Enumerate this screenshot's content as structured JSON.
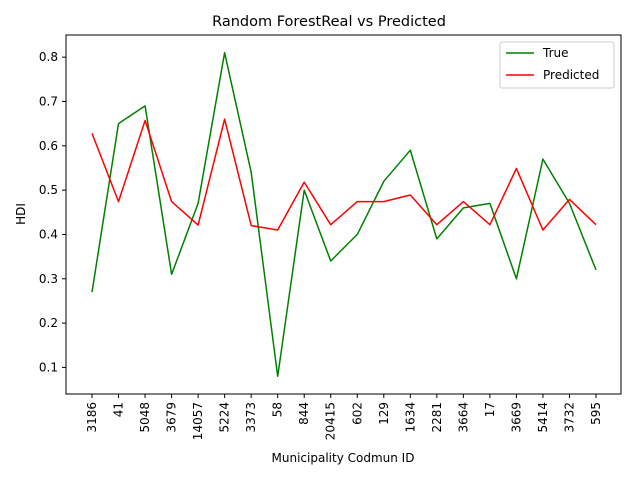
{
  "chart_data": {
    "type": "line",
    "title": "Random ForestReal vs Predicted",
    "xlabel": "Municipality Codmun ID",
    "ylabel": "HDI",
    "categories": [
      "3186",
      "41",
      "5048",
      "3679",
      "14057",
      "5224",
      "3373",
      "58",
      "844",
      "20415",
      "602",
      "129",
      "1634",
      "2281",
      "3664",
      "17",
      "3669",
      "5414",
      "3732",
      "595"
    ],
    "series": [
      {
        "name": "True",
        "color": "#008000",
        "values": [
          0.27,
          0.65,
          0.69,
          0.31,
          0.47,
          0.81,
          0.54,
          0.08,
          0.5,
          0.34,
          0.4,
          0.52,
          0.59,
          0.39,
          0.46,
          0.47,
          0.3,
          0.57,
          0.47,
          0.32
        ]
      },
      {
        "name": "Predicted",
        "color": "#ff0000",
        "values": [
          0.628,
          0.474,
          0.657,
          0.474,
          0.421,
          0.66,
          0.42,
          0.41,
          0.518,
          0.422,
          0.474,
          0.474,
          0.489,
          0.422,
          0.474,
          0.422,
          0.549,
          0.41,
          0.479,
          0.422
        ]
      }
    ],
    "ylim": [
      0.04,
      0.85
    ],
    "yticks": [
      0.1,
      0.2,
      0.3,
      0.4,
      0.5,
      0.6,
      0.7,
      0.8
    ],
    "legend_position": "top-right",
    "grid": false
  }
}
